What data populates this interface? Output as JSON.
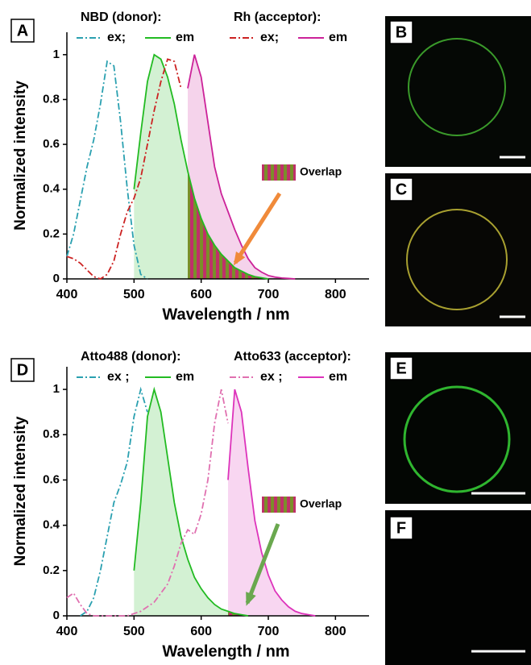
{
  "panel_labels": [
    "A",
    "B",
    "C",
    "D",
    "E",
    "F"
  ],
  "chart_data": [
    {
      "type": "line",
      "xlabel": "Wavelength / nm",
      "ylabel": "Normalized intensity",
      "xlim": [
        400,
        850
      ],
      "xticks": [
        400,
        500,
        600,
        700,
        800
      ],
      "ylim": [
        0,
        1.1
      ],
      "yticks": [
        0,
        0.2,
        0.4,
        0.6,
        0.8,
        1
      ],
      "legend_groups": [
        "NBD (donor):",
        "Rh (acceptor):"
      ],
      "annotation": "Overlap",
      "x": [
        400,
        410,
        420,
        430,
        440,
        450,
        460,
        470,
        480,
        490,
        500,
        510,
        520,
        530,
        540,
        550,
        560,
        570,
        580,
        590,
        600,
        610,
        620,
        630,
        640,
        650,
        660,
        670,
        680,
        690,
        700,
        710,
        720,
        730,
        740
      ],
      "series": [
        {
          "name": "ex;",
          "color": "#2aa0b0",
          "style": "dash-dot",
          "values": [
            0.1,
            0.2,
            0.35,
            0.5,
            0.62,
            0.78,
            0.97,
            0.95,
            0.7,
            0.4,
            0.15,
            0.02,
            0,
            null,
            null,
            null,
            null,
            null,
            null,
            null,
            null,
            null,
            null,
            null,
            null,
            null,
            null,
            null,
            null,
            null,
            null,
            null,
            null,
            null,
            null
          ]
        },
        {
          "name": "em",
          "color": "#22bb22",
          "style": "solid",
          "values": [
            null,
            null,
            null,
            null,
            null,
            null,
            null,
            null,
            null,
            null,
            0.4,
            0.65,
            0.88,
            1.0,
            0.98,
            0.9,
            0.78,
            0.62,
            0.48,
            0.36,
            0.27,
            0.2,
            0.15,
            0.11,
            0.08,
            0.05,
            0.035,
            0.02,
            0.01,
            0.005,
            0,
            null,
            null,
            null,
            null
          ]
        },
        {
          "name": "ex;",
          "color": "#cc2222",
          "style": "dash-dot",
          "values": [
            0.1,
            0.09,
            0.07,
            0.04,
            0.01,
            0,
            0.02,
            0.08,
            0.2,
            0.3,
            0.36,
            0.45,
            0.6,
            0.75,
            0.88,
            0.98,
            0.97,
            0.85,
            null,
            null,
            null,
            null,
            null,
            null,
            null,
            null,
            null,
            null,
            null,
            null,
            null,
            null,
            null,
            null,
            null
          ]
        },
        {
          "name": "em",
          "color": "#cc2299",
          "style": "solid",
          "values": [
            null,
            null,
            null,
            null,
            null,
            null,
            null,
            null,
            null,
            null,
            null,
            null,
            null,
            null,
            null,
            null,
            null,
            null,
            0.85,
            1.0,
            0.9,
            0.7,
            0.5,
            0.38,
            0.3,
            0.22,
            0.15,
            0.09,
            0.05,
            0.03,
            0.015,
            0.008,
            0.004,
            0.002,
            0
          ]
        }
      ]
    },
    {
      "type": "line",
      "xlabel": "Wavelength / nm",
      "ylabel": "Normalized intensity",
      "xlim": [
        400,
        850
      ],
      "xticks": [
        400,
        500,
        600,
        700,
        800
      ],
      "ylim": [
        0,
        1.1
      ],
      "yticks": [
        0,
        0.2,
        0.4,
        0.6,
        0.8,
        1
      ],
      "legend_groups": [
        "Atto488 (donor):",
        "Atto633 (acceptor):"
      ],
      "annotation": "Overlap",
      "x": [
        400,
        410,
        420,
        430,
        440,
        450,
        460,
        470,
        480,
        490,
        500,
        510,
        520,
        530,
        540,
        550,
        560,
        570,
        580,
        590,
        600,
        610,
        620,
        630,
        640,
        650,
        660,
        670,
        680,
        690,
        700,
        710,
        720,
        730,
        740,
        750,
        760,
        770
      ],
      "series": [
        {
          "name": "ex ;",
          "color": "#2aa0b0",
          "style": "dash-dot",
          "values": [
            null,
            null,
            0,
            0.02,
            0.08,
            0.2,
            0.35,
            0.5,
            0.58,
            0.68,
            0.88,
            1.0,
            0.9,
            null,
            null,
            null,
            null,
            null,
            null,
            null,
            null,
            null,
            null,
            null,
            null,
            null,
            null,
            null,
            null,
            null,
            null,
            null,
            null,
            null,
            null,
            null,
            null,
            null
          ]
        },
        {
          "name": "em",
          "color": "#22bb22",
          "style": "solid",
          "values": [
            null,
            null,
            null,
            null,
            null,
            null,
            null,
            null,
            null,
            null,
            0.2,
            0.5,
            0.88,
            1.0,
            0.9,
            0.7,
            0.5,
            0.35,
            0.25,
            0.17,
            0.12,
            0.08,
            0.05,
            0.03,
            0.02,
            0.01,
            0.005,
            0,
            null,
            null,
            null,
            null,
            null,
            null,
            null,
            null,
            null,
            null
          ]
        },
        {
          "name": "ex ;",
          "color": "#e070b0",
          "style": "dash-dot",
          "values": [
            0.08,
            0.1,
            0.05,
            0.01,
            0,
            0,
            0,
            0,
            0,
            0,
            0.01,
            0.02,
            0.04,
            0.06,
            0.1,
            0.14,
            0.22,
            0.32,
            0.38,
            0.36,
            0.45,
            0.6,
            0.85,
            1.0,
            0.85,
            null,
            null,
            null,
            null,
            null,
            null,
            null,
            null,
            null,
            null,
            null,
            null,
            null
          ]
        },
        {
          "name": "em",
          "color": "#dd33bb",
          "style": "solid",
          "values": [
            null,
            null,
            null,
            null,
            null,
            null,
            null,
            null,
            null,
            null,
            null,
            null,
            null,
            null,
            null,
            null,
            null,
            null,
            null,
            null,
            null,
            null,
            null,
            null,
            0.6,
            1.0,
            0.9,
            0.65,
            0.42,
            0.28,
            0.18,
            0.11,
            0.07,
            0.04,
            0.02,
            0.01,
            0.005,
            0
          ]
        }
      ]
    }
  ]
}
